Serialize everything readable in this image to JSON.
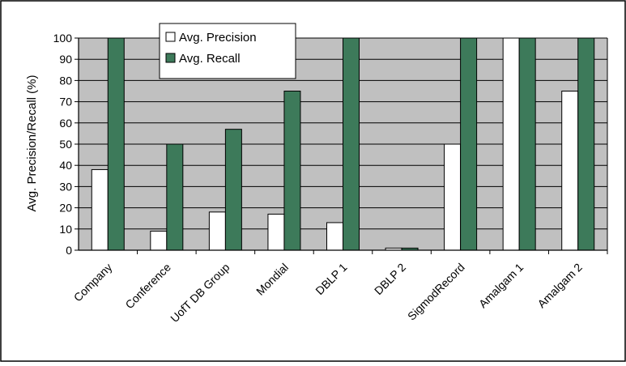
{
  "chart_data": {
    "type": "bar",
    "title": "",
    "xlabel": "",
    "ylabel": "Avg. Precision/Recall (%)",
    "ylim": [
      0,
      100
    ],
    "yticks": [
      0,
      10,
      20,
      30,
      40,
      50,
      60,
      70,
      80,
      90,
      100
    ],
    "grid": "horizontal",
    "legend_position": "top-left inside plot",
    "categories": [
      "Company",
      "Conference",
      "UofT DB Group",
      "Mondial",
      "DBLP 1",
      "DBLP 2",
      "SigmodRecord",
      "Amalgam 1",
      "Amalgam 2"
    ],
    "series": [
      {
        "name": "Avg. Precision",
        "color": "#ffffff",
        "values": [
          38,
          9,
          18,
          17,
          13,
          1,
          50,
          100,
          75
        ]
      },
      {
        "name": "Avg. Recall",
        "color": "#3d7a5a",
        "values": [
          100,
          50,
          57,
          75,
          100,
          1,
          100,
          100,
          100
        ]
      }
    ],
    "plot_background": "#c0c0c0"
  }
}
